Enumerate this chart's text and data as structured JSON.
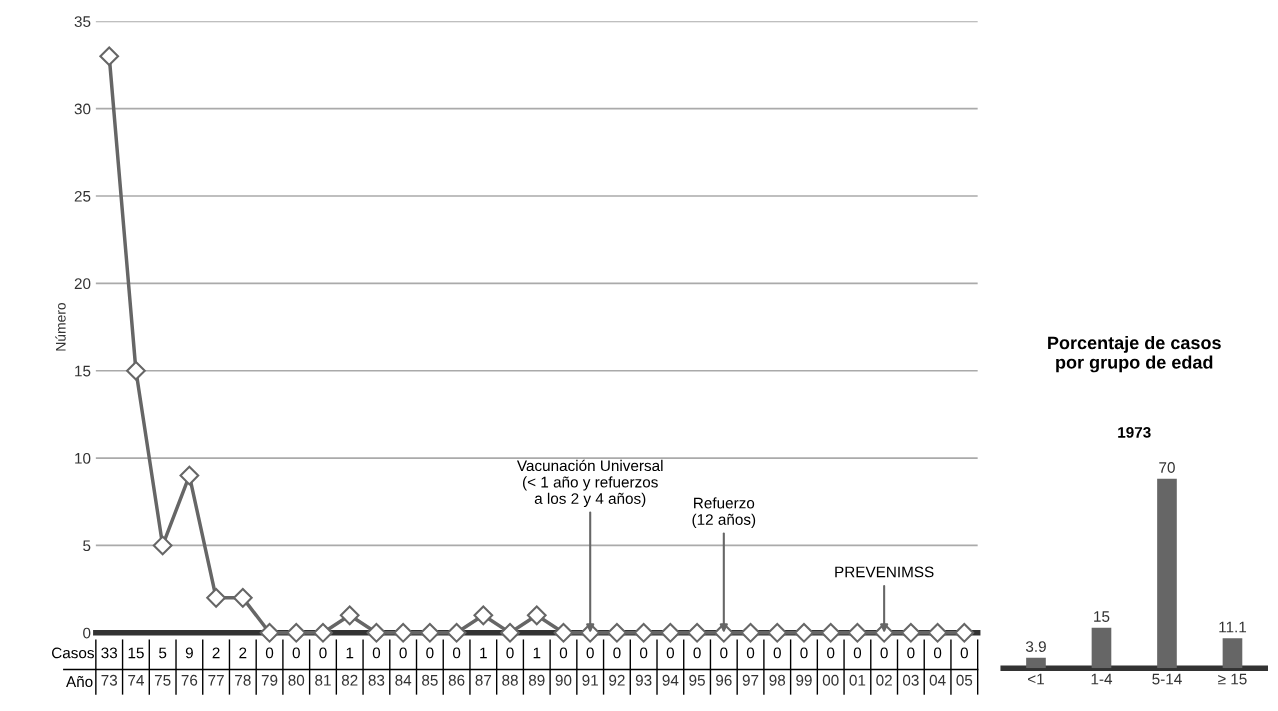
{
  "chart_data": [
    {
      "type": "line",
      "ylabel": "Número",
      "xlabel": "Año",
      "categories": [
        "73",
        "74",
        "75",
        "76",
        "77",
        "78",
        "79",
        "80",
        "81",
        "82",
        "83",
        "84",
        "85",
        "86",
        "87",
        "88",
        "89",
        "90",
        "91",
        "92",
        "93",
        "94",
        "95",
        "96",
        "97",
        "98",
        "99",
        "00",
        "01",
        "02",
        "03",
        "04",
        "05"
      ],
      "series": [
        {
          "color": "#666666",
          "values": [
            33,
            15,
            5,
            9,
            2,
            2,
            0,
            0,
            0,
            1,
            0,
            0,
            0,
            0,
            1,
            0,
            1,
            0,
            0,
            0,
            0,
            0,
            0,
            0,
            0,
            0,
            0,
            0,
            0,
            0,
            0,
            0,
            0
          ]
        }
      ],
      "ylim": [
        0,
        35
      ],
      "yticks": [
        0,
        5,
        10,
        15,
        20,
        25,
        30,
        35
      ],
      "grid": "y",
      "marker": "diamond",
      "line_style": "solid",
      "data_labels": true,
      "legend": false,
      "annotations": [
        {
          "text": "Vacunación Universal\n(< 1 año y refuerzos\na los 2 y 4 años)",
          "x": "91",
          "y": 0
        },
        {
          "text": "Refuerzo\n(12 años)",
          "x": "96",
          "y": 0
        },
        {
          "text": "PREVENIMSS",
          "x": "02",
          "y": 0
        },
        "Casos"
      ]
    },
    {
      "type": "bar",
      "title": "Porcentaje de casos\npor grupo de edad",
      "subtitle": "1973",
      "categories": [
        "<1",
        "1-4",
        "5-14",
        "≥ 15"
      ],
      "values": [
        3.9,
        15,
        70,
        11.1
      ],
      "color": "#666666",
      "data_labels": true,
      "tick_labels": "x",
      "grid": false,
      "legend": false
    }
  ]
}
